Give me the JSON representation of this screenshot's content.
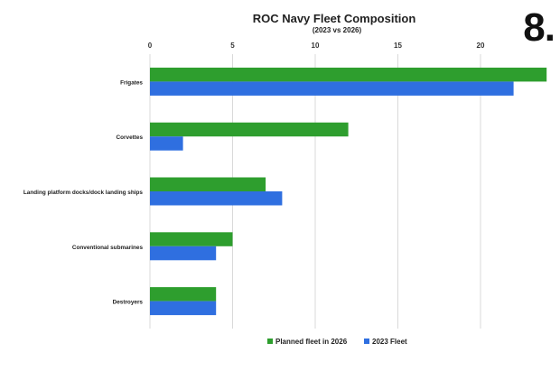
{
  "figure_label": "8.",
  "chart_data": {
    "type": "bar",
    "orientation": "horizontal",
    "title": "ROC Navy Fleet Composition",
    "subtitle": "(2023 vs 2026)",
    "categories": [
      "Frigates",
      "Corvettes",
      "Landing platform docks/dock landing ships",
      "Conventional submarines",
      "Destroyers"
    ],
    "series": [
      {
        "name": "Planned fleet in 2026",
        "color": "#2e9e2e",
        "values": [
          24,
          12,
          7,
          5,
          4
        ]
      },
      {
        "name": "2023 Fleet",
        "color": "#2f6fe0",
        "values": [
          22,
          2,
          8,
          4,
          4
        ]
      }
    ],
    "xlim": [
      0,
      25
    ],
    "xticks": [
      "0",
      "5",
      "10",
      "15",
      "20"
    ],
    "xtick_values": [
      0,
      5,
      10,
      15,
      20
    ],
    "xaxis_position": "top",
    "grid": true,
    "legend_position": "bottom"
  }
}
